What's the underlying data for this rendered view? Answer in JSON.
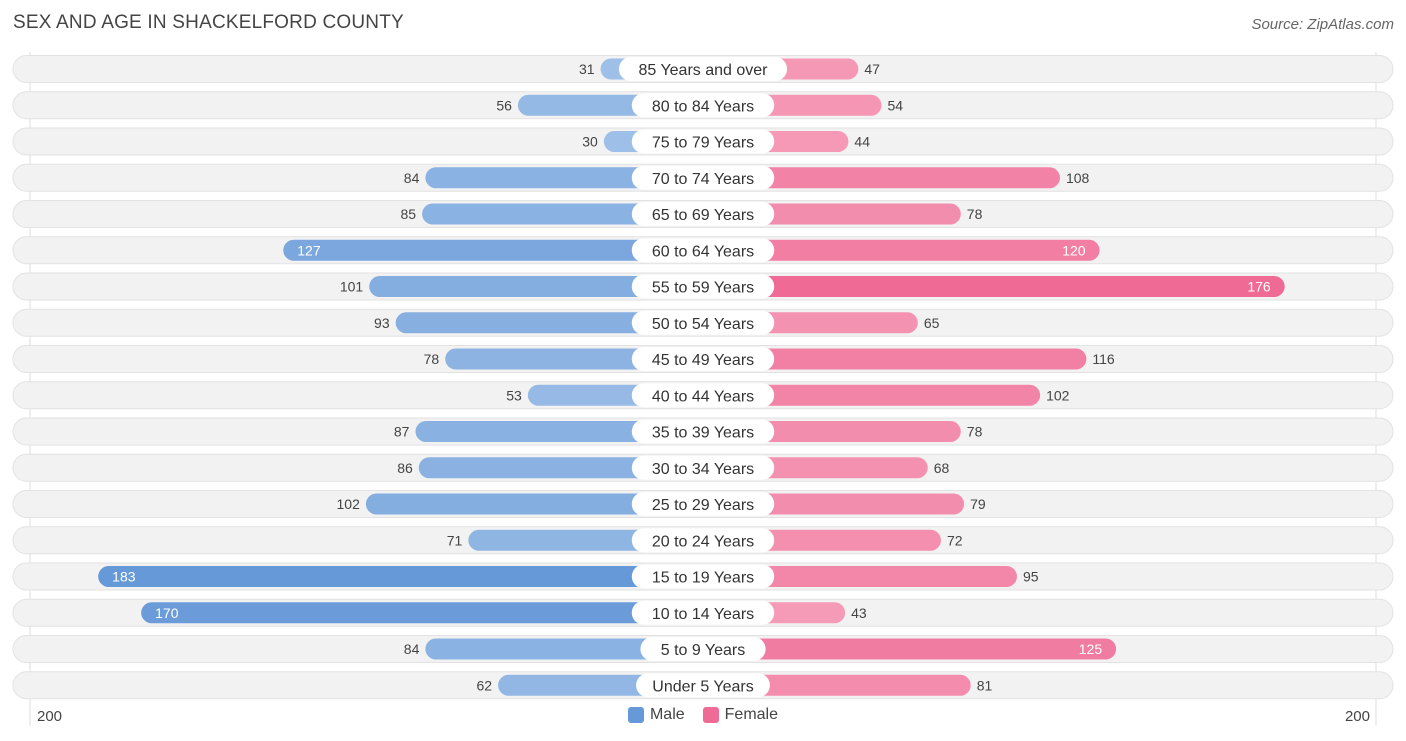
{
  "title": "SEX AND AGE IN SHACKELFORD COUNTY",
  "source": "Source: ZipAtlas.com",
  "colors": {
    "male_light": "#a9c7ea",
    "male_dark": "#6699d8",
    "female_light": "#f7a9c2",
    "female_dark": "#ef6a94",
    "row_bg": "#f2f2f2"
  },
  "legend": {
    "male": "Male",
    "female": "Female"
  },
  "axis": {
    "left": "200",
    "right": "200"
  },
  "chart_data": {
    "type": "bar",
    "orientation": "horizontal-diverging",
    "title": "SEX AND AGE IN SHACKELFORD COUNTY",
    "xlim": [
      -200,
      200
    ],
    "categories": [
      "85 Years and over",
      "80 to 84 Years",
      "75 to 79 Years",
      "70 to 74 Years",
      "65 to 69 Years",
      "60 to 64 Years",
      "55 to 59 Years",
      "50 to 54 Years",
      "45 to 49 Years",
      "40 to 44 Years",
      "35 to 39 Years",
      "30 to 34 Years",
      "25 to 29 Years",
      "20 to 24 Years",
      "15 to 19 Years",
      "10 to 14 Years",
      "5 to 9 Years",
      "Under 5 Years"
    ],
    "series": [
      {
        "name": "Male",
        "values": [
          31,
          56,
          30,
          84,
          85,
          127,
          101,
          93,
          78,
          53,
          87,
          86,
          102,
          71,
          183,
          170,
          84,
          62
        ]
      },
      {
        "name": "Female",
        "values": [
          47,
          54,
          44,
          108,
          78,
          120,
          176,
          65,
          116,
          102,
          78,
          68,
          79,
          72,
          95,
          43,
          125,
          81
        ]
      }
    ]
  }
}
